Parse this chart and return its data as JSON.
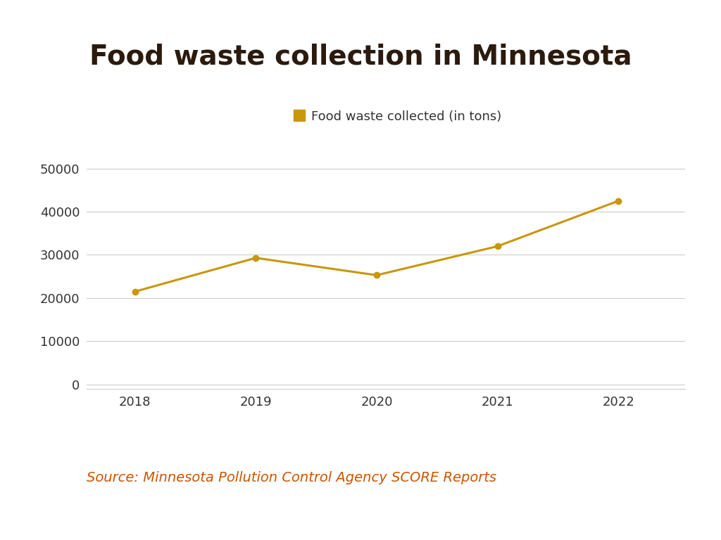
{
  "title": "Food waste collection in Minnesota",
  "title_color": "#2b1a0e",
  "title_fontsize": 28,
  "title_fontweight": "bold",
  "years": [
    2018,
    2019,
    2020,
    2021,
    2022
  ],
  "values": [
    21500,
    29300,
    25300,
    32000,
    42500
  ],
  "line_color": "#c9960c",
  "marker_color": "#c9960c",
  "marker_size": 6,
  "line_width": 2.2,
  "legend_label": "Food waste collected (in tons)",
  "legend_marker_color": "#c9960c",
  "yticks": [
    0,
    10000,
    20000,
    30000,
    40000,
    50000
  ],
  "xticks": [
    2018,
    2019,
    2020,
    2021,
    2022
  ],
  "ylim": [
    -1000,
    54000
  ],
  "source_text": "Source: Minnesota Pollution Control Agency SCORE Reports",
  "source_color": "#cc5500",
  "source_fontsize": 14,
  "grid_color": "#cccccc",
  "background_color": "#ffffff",
  "tick_label_fontsize": 13,
  "tick_label_color": "#333333",
  "legend_fontsize": 13,
  "xlim_left": 2017.6,
  "xlim_right": 2022.55
}
